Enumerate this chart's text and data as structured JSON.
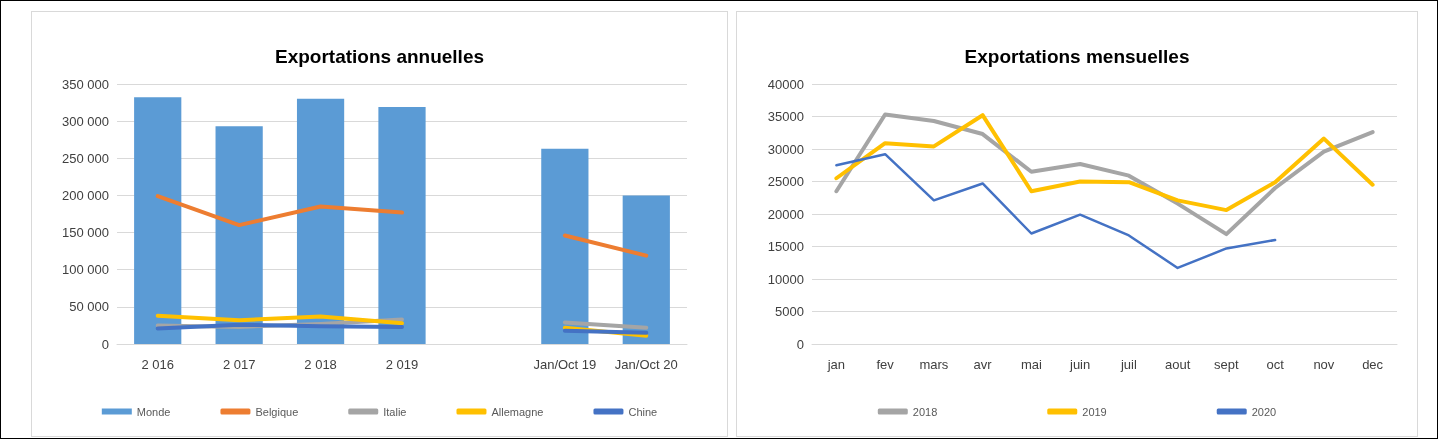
{
  "chart_data": [
    {
      "type": "bar",
      "title": "Exportations annuelles",
      "categories": [
        "2 016",
        "2 017",
        "2 018",
        "2 019",
        null,
        "Jan/Oct 19",
        "Jan/Oct 20"
      ],
      "series": [
        {
          "name": "Monde",
          "color": "#5b9bd5",
          "values": [
            332000,
            293000,
            330000,
            319000,
            null,
            263000,
            200000
          ]
        },
        {
          "name": "Belgique",
          "type": "line",
          "color": "#ed7d31",
          "values": [
            199000,
            160000,
            185000,
            177000,
            null,
            146000,
            119000
          ]
        },
        {
          "name": "Italie",
          "type": "line",
          "color": "#a5a5a5",
          "values": [
            25000,
            23000,
            27000,
            33000,
            null,
            29000,
            22000
          ]
        },
        {
          "name": "Allemagne",
          "type": "line",
          "color": "#ffc000",
          "values": [
            38000,
            32000,
            37000,
            28000,
            null,
            22000,
            11000
          ]
        },
        {
          "name": "Chine",
          "type": "line",
          "color": "#4472c4",
          "values": [
            21000,
            26000,
            24000,
            23000,
            null,
            18000,
            15000
          ]
        }
      ],
      "ylim": [
        0,
        350000
      ],
      "yticks": [
        {
          "value": 0,
          "label": "0"
        },
        {
          "value": 50000,
          "label": "50 000"
        },
        {
          "value": 100000,
          "label": "100 000"
        },
        {
          "value": 150000,
          "label": "150 000"
        },
        {
          "value": 200000,
          "label": "200 000"
        },
        {
          "value": 250000,
          "label": "250 000"
        },
        {
          "value": 300000,
          "label": "300 000"
        },
        {
          "value": 350000,
          "label": "350 000"
        }
      ],
      "grid": "y",
      "legend": "bottom",
      "marker": "none"
    },
    {
      "type": "line",
      "title": "Exportations mensuelles",
      "categories": [
        "jan",
        "fev",
        "mars",
        "avr",
        "mai",
        "juin",
        "juil",
        "aout",
        "sept",
        "oct",
        "nov",
        "dec"
      ],
      "series": [
        {
          "name": "2018",
          "color": "#a5a5a5",
          "values": [
            23500,
            35300,
            34300,
            32300,
            26500,
            27700,
            25900,
            21600,
            16900,
            24000,
            29600,
            32600
          ]
        },
        {
          "name": "2019",
          "color": "#ffc000",
          "values": [
            25500,
            30900,
            30400,
            35200,
            23500,
            25000,
            24900,
            22100,
            20600,
            24900,
            31600,
            24500
          ]
        },
        {
          "name": "2020",
          "color": "#4472c4",
          "values": [
            27500,
            29200,
            22100,
            24700,
            17000,
            19900,
            16700,
            11700,
            14700,
            16000,
            null,
            null
          ]
        }
      ],
      "ylim": [
        0,
        40000
      ],
      "yticks": [
        0,
        5000,
        10000,
        15000,
        20000,
        25000,
        30000,
        35000,
        40000
      ],
      "grid": "y",
      "legend": "bottom",
      "marker": "none"
    }
  ]
}
